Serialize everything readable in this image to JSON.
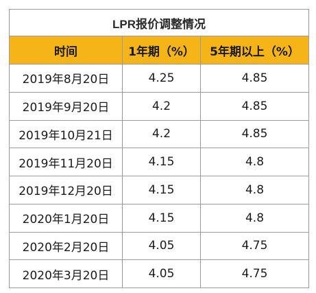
{
  "chart_data": {
    "type": "table",
    "title": "LPR报价调整情况",
    "columns": [
      "时间",
      "1年期（%）",
      "5年期以上（%）"
    ],
    "rows": [
      [
        "2019年8月20日",
        "4.25",
        "4.85"
      ],
      [
        "2019年9月20日",
        "4.2",
        "4.85"
      ],
      [
        "2019年10月21日",
        "4.2",
        "4.85"
      ],
      [
        "2019年11月20日",
        "4.15",
        "4.8"
      ],
      [
        "2019年12月20日",
        "4.15",
        "4.8"
      ],
      [
        "2020年1月20日",
        "4.15",
        "4.8"
      ],
      [
        "2020年2月20日",
        "4.05",
        "4.75"
      ],
      [
        "2020年3月20日",
        "4.05",
        "4.75"
      ]
    ],
    "header_color": "#f5b418",
    "border_color": "#9a9a9a"
  }
}
